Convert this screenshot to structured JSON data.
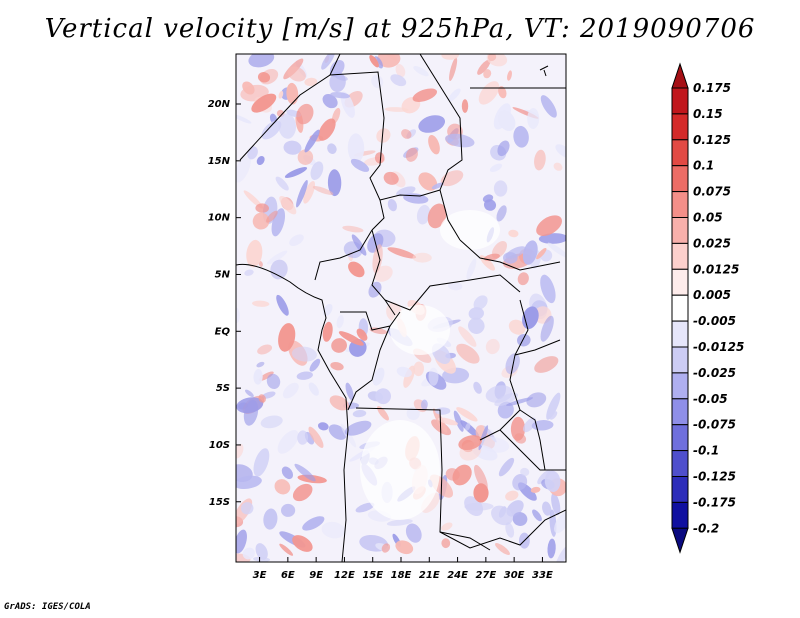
{
  "title": "Vertical velocity [m/s] at 925hPa, VT: 2019090706",
  "credit": "GrADS: IGES/COLA",
  "map": {
    "lat_labels": [
      "20N",
      "15N",
      "10N",
      "5N",
      "EQ",
      "5S",
      "10S",
      "15S"
    ],
    "lat_values": [
      20,
      15,
      10,
      5,
      0,
      -5,
      -10,
      -15
    ],
    "lon_labels": [
      "3E",
      "6E",
      "9E",
      "12E",
      "15E",
      "18E",
      "21E",
      "24E",
      "27E",
      "30E",
      "33E"
    ],
    "lon_values": [
      3,
      6,
      9,
      12,
      15,
      18,
      21,
      24,
      27,
      30,
      33
    ],
    "lon_range": [
      0.5,
      35.5
    ],
    "lat_range": [
      -20.3,
      24.4
    ]
  },
  "colorbar": {
    "labels": [
      "0.175",
      "0.15",
      "0.125",
      "0.1",
      "0.075",
      "0.05",
      "0.025",
      "0.0125",
      "0.005",
      "-0.005",
      "-0.0125",
      "-0.025",
      "-0.05",
      "-0.075",
      "-0.1",
      "-0.125",
      "-0.175",
      "-0.2"
    ],
    "colors": [
      "#a50f15",
      "#c0171c",
      "#d42a29",
      "#e24a44",
      "#ec6c65",
      "#f48f89",
      "#f8b0ab",
      "#fcd0cc",
      "#feeceb",
      "#ffffff",
      "#e6e6fa",
      "#ccccf4",
      "#afaff0",
      "#8f8fe8",
      "#6f6fdc",
      "#4f4fcc",
      "#2d2dba",
      "#1010a0",
      "#0a0a80"
    ]
  }
}
